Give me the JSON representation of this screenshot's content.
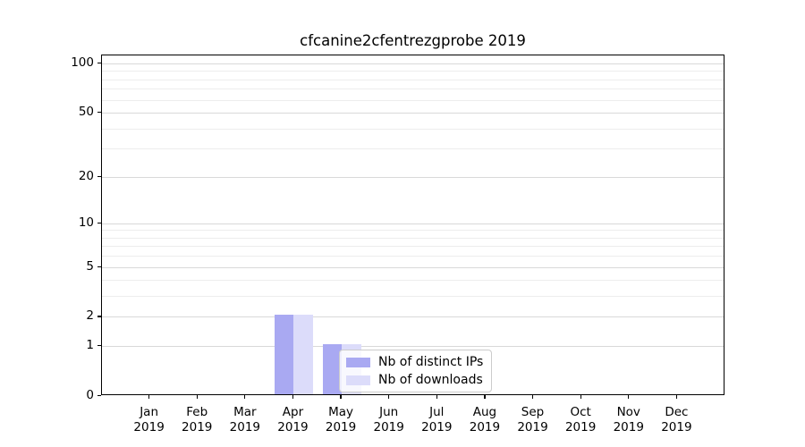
{
  "chart_data": {
    "type": "bar",
    "title": "cfcanine2cfentrezgprobe 2019",
    "categories": [
      "Jan",
      "Feb",
      "Mar",
      "Apr",
      "May",
      "Jun",
      "Jul",
      "Aug",
      "Sep",
      "Oct",
      "Nov",
      "Dec"
    ],
    "x_year_sublabel": "2019",
    "series": [
      {
        "name": "Nb of distinct IPs",
        "color": "#a9a9f2",
        "values": [
          0,
          0,
          0,
          2,
          1,
          0,
          0,
          0,
          0,
          0,
          0,
          0
        ]
      },
      {
        "name": "Nb of downloads",
        "color": "#dcdcfa",
        "values": [
          0,
          0,
          0,
          2,
          1,
          0,
          0,
          0,
          0,
          0,
          0,
          0
        ]
      }
    ],
    "yscale": "log1p",
    "yticks": [
      0,
      1,
      2,
      5,
      10,
      20,
      50,
      100
    ],
    "minor_yticks": [
      3,
      4,
      6,
      7,
      8,
      9,
      30,
      40,
      60,
      70,
      80,
      90
    ],
    "ylim": [
      0,
      112
    ],
    "xlim": [
      -1,
      12
    ],
    "bar_width_units": 0.4,
    "grid": "horizontal",
    "legend_position": "lower-center",
    "colors": {
      "major_grid": "#d9d9d9",
      "minor_grid": "#ededed",
      "spine": "#000000",
      "background": "#ffffff"
    }
  }
}
